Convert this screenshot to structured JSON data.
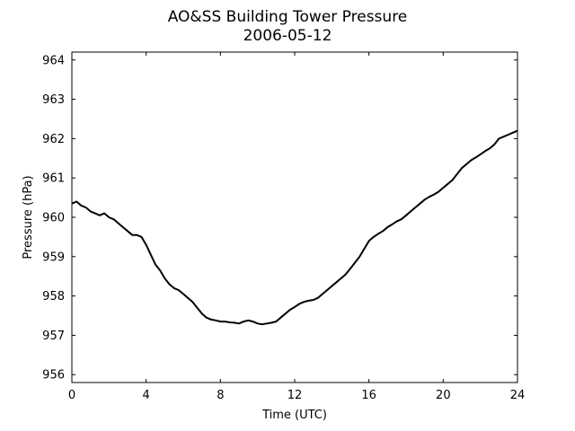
{
  "chart_data": {
    "type": "line",
    "title": "AO&SS Building Tower Pressure",
    "subtitle": "2006-05-12",
    "xlabel": "Time (UTC)",
    "ylabel": "Pressure (hPa)",
    "xlim": [
      0,
      24
    ],
    "ylim": [
      955.8,
      964.2
    ],
    "x_ticks": [
      0,
      4,
      8,
      12,
      16,
      20,
      24
    ],
    "y_ticks": [
      956,
      957,
      958,
      959,
      960,
      961,
      962,
      963,
      964
    ],
    "grid": false,
    "legend": "none",
    "line_color": "#000000",
    "series": [
      {
        "x": [
          0.0,
          0.25,
          0.5,
          0.75,
          1.0,
          1.25,
          1.5,
          1.75,
          2.0,
          2.25,
          2.5,
          2.75,
          3.0,
          3.25,
          3.5,
          3.75,
          4.0,
          4.25,
          4.5,
          4.75,
          5.0,
          5.25,
          5.5,
          5.75,
          6.0,
          6.25,
          6.5,
          6.75,
          7.0,
          7.25,
          7.5,
          7.75,
          8.0,
          8.25,
          8.5,
          8.75,
          9.0,
          9.25,
          9.5,
          9.75,
          10.0,
          10.25,
          10.5,
          10.75,
          11.0,
          11.25,
          11.5,
          11.75,
          12.0,
          12.25,
          12.5,
          12.75,
          13.0,
          13.25,
          13.5,
          13.75,
          14.0,
          14.25,
          14.5,
          14.75,
          15.0,
          15.25,
          15.5,
          15.75,
          16.0,
          16.25,
          16.5,
          16.75,
          17.0,
          17.25,
          17.5,
          17.75,
          18.0,
          18.25,
          18.5,
          18.75,
          19.0,
          19.25,
          19.5,
          19.75,
          20.0,
          20.25,
          20.5,
          20.75,
          21.0,
          21.25,
          21.5,
          21.75,
          22.0,
          22.25,
          22.5,
          22.75,
          23.0,
          23.25,
          23.5,
          23.75,
          24.0
        ],
        "y": [
          960.35,
          960.4,
          960.3,
          960.25,
          960.15,
          960.1,
          960.05,
          960.1,
          960.0,
          959.95,
          959.85,
          959.75,
          959.65,
          959.55,
          959.55,
          959.5,
          959.3,
          959.05,
          958.8,
          958.65,
          958.45,
          958.3,
          958.2,
          958.15,
          958.05,
          957.95,
          957.85,
          957.7,
          957.55,
          957.45,
          957.4,
          957.38,
          957.35,
          957.35,
          957.33,
          957.32,
          957.3,
          957.35,
          957.38,
          957.35,
          957.3,
          957.28,
          957.3,
          957.32,
          957.35,
          957.45,
          957.55,
          957.65,
          957.72,
          957.8,
          957.85,
          957.88,
          957.9,
          957.95,
          958.05,
          958.15,
          958.25,
          958.35,
          958.45,
          958.55,
          958.7,
          958.85,
          959.0,
          959.2,
          959.4,
          959.5,
          959.58,
          959.65,
          959.75,
          959.82,
          959.9,
          959.95,
          960.05,
          960.15,
          960.25,
          960.35,
          960.45,
          960.52,
          960.58,
          960.65,
          960.75,
          960.85,
          960.95,
          961.1,
          961.25,
          961.35,
          961.45,
          961.52,
          961.6,
          961.68,
          961.75,
          961.85,
          962.0,
          962.05,
          962.1,
          962.15,
          962.2
        ]
      }
    ]
  }
}
